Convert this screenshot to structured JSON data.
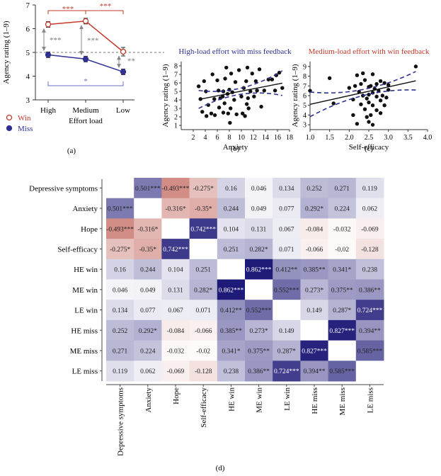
{
  "chart_data": [
    {
      "id": "a",
      "type": "line",
      "panel_label": "(a)",
      "ylabel": "Agency rating (1–9)",
      "xlabel": "Effort load",
      "categories": [
        "High",
        "Medium",
        "Low"
      ],
      "ylim": [
        3,
        7
      ],
      "yticks": [
        3,
        4,
        5,
        6,
        7
      ],
      "reference_line": 5,
      "series": [
        {
          "name": "Win",
          "values": [
            6.18,
            6.32,
            5.03
          ],
          "errors": [
            0.12,
            0.12,
            0.18
          ],
          "color": "#c0392b",
          "marker": "open-circle"
        },
        {
          "name": "Miss",
          "values": [
            4.9,
            4.72,
            4.18
          ],
          "errors": [
            0.12,
            0.12,
            0.12
          ],
          "color": "#2e3192",
          "marker": "filled-circle"
        }
      ],
      "annotations": {
        "win_high_medium": "***",
        "win_medium_low": "***",
        "high_win_miss": "***",
        "medium_win_miss": "***",
        "low_win_miss": "**",
        "miss_high_low": "*"
      }
    },
    {
      "id": "b",
      "type": "scatter",
      "panel_label": "(b)",
      "title": "High-load effort with miss feedback",
      "title_color": "#2e3192",
      "xlabel": "Anxiety",
      "ylabel": "Agency rating (1–9)",
      "xlim": [
        0,
        18
      ],
      "ylim": [
        0.5,
        8.5
      ],
      "xticks": [
        2,
        4,
        6,
        8,
        10,
        12,
        14,
        16,
        18
      ],
      "yticks": [
        1,
        2,
        3,
        4,
        5,
        6,
        7,
        8
      ],
      "fit": {
        "intercept": 3.65,
        "slope": 0.138
      },
      "ci_color": "#2e3192",
      "points": [
        [
          2.9,
          5.6
        ],
        [
          3.2,
          4.1
        ],
        [
          3.5,
          2.6
        ],
        [
          3.8,
          6.2
        ],
        [
          4.1,
          5.0
        ],
        [
          4.2,
          2.1
        ],
        [
          4.5,
          3.4
        ],
        [
          5.0,
          2.4
        ],
        [
          5.2,
          7.0
        ],
        [
          5.5,
          4.1
        ],
        [
          5.6,
          2.2
        ],
        [
          6.0,
          6.3
        ],
        [
          6.2,
          5.1
        ],
        [
          6.3,
          3.1
        ],
        [
          6.5,
          4.2
        ],
        [
          6.9,
          4.4
        ],
        [
          7.0,
          2.5
        ],
        [
          7.0,
          5.0
        ],
        [
          7.2,
          3.6
        ],
        [
          7.3,
          6.5
        ],
        [
          7.5,
          7.8
        ],
        [
          7.7,
          4.7
        ],
        [
          7.8,
          2.4
        ],
        [
          8.0,
          5.2
        ],
        [
          8.1,
          1.3
        ],
        [
          8.2,
          3.0
        ],
        [
          8.3,
          7.1
        ],
        [
          8.5,
          4.9
        ],
        [
          8.8,
          4.0
        ],
        [
          9.0,
          6.1
        ],
        [
          9.2,
          2.3
        ],
        [
          9.6,
          7.5
        ],
        [
          10.0,
          4.4
        ],
        [
          10.2,
          2.4
        ],
        [
          10.4,
          5.4
        ],
        [
          10.6,
          2.1
        ],
        [
          10.8,
          6.2
        ],
        [
          10.9,
          3.5
        ],
        [
          11.0,
          7.8
        ],
        [
          11.1,
          4.2
        ],
        [
          11.2,
          3.0
        ],
        [
          11.5,
          5.0
        ],
        [
          11.8,
          7.1
        ],
        [
          12.1,
          4.4
        ],
        [
          12.4,
          6.2
        ],
        [
          12.6,
          5.1
        ],
        [
          13.0,
          7.6
        ],
        [
          13.3,
          3.2
        ],
        [
          13.8,
          5.1
        ],
        [
          14.5,
          6.4
        ],
        [
          15.1,
          6.4
        ],
        [
          15.6,
          5.1
        ],
        [
          15.8,
          6.9
        ],
        [
          16.3,
          7.2
        ],
        [
          16.8,
          5.4
        ]
      ]
    },
    {
      "id": "c",
      "type": "scatter",
      "panel_label": "(c)",
      "title": "Medium-load effort with win feedback",
      "title_color": "#c0392b",
      "xlabel": "Self-efficacy",
      "ylabel": "Agency rating (1–9)",
      "xlim": [
        1.0,
        4.0
      ],
      "ylim": [
        2.5,
        9.5
      ],
      "xticks": [
        1.0,
        1.5,
        2.0,
        2.5,
        3.0,
        3.5,
        4.0
      ],
      "yticks": [
        3,
        4,
        5,
        6,
        7,
        8,
        9
      ],
      "fit": {
        "intercept": 4.2,
        "slope": 0.9
      },
      "ci_color": "#2e3192",
      "points": [
        [
          1.0,
          6.5
        ],
        [
          1.5,
          7.8
        ],
        [
          1.6,
          5.2
        ],
        [
          2.0,
          6.8
        ],
        [
          2.1,
          4.0
        ],
        [
          2.1,
          5.6
        ],
        [
          2.2,
          8.1
        ],
        [
          2.2,
          3.1
        ],
        [
          2.25,
          6.4
        ],
        [
          2.3,
          5.1
        ],
        [
          2.3,
          7.2
        ],
        [
          2.35,
          6.0
        ],
        [
          2.4,
          7.6
        ],
        [
          2.4,
          4.6
        ],
        [
          2.45,
          5.7
        ],
        [
          2.5,
          6.9
        ],
        [
          2.5,
          6.1
        ],
        [
          2.5,
          5.3
        ],
        [
          2.5,
          3.3
        ],
        [
          2.55,
          7.0
        ],
        [
          2.6,
          6.3
        ],
        [
          2.6,
          5.0
        ],
        [
          2.6,
          8.2
        ],
        [
          2.6,
          3.0
        ],
        [
          2.65,
          6.7
        ],
        [
          2.7,
          5.9
        ],
        [
          2.7,
          7.2
        ],
        [
          2.7,
          4.5
        ],
        [
          2.75,
          6.5
        ],
        [
          2.8,
          5.5
        ],
        [
          2.8,
          7.5
        ],
        [
          2.8,
          4.2
        ],
        [
          2.85,
          6.0
        ],
        [
          2.9,
          7.3
        ],
        [
          2.9,
          5.0
        ],
        [
          3.0,
          7.1
        ],
        [
          3.0,
          6.6
        ],
        [
          2.35,
          8.3
        ],
        [
          2.45,
          3.8
        ],
        [
          2.15,
          7.0
        ],
        [
          2.95,
          5.8
        ],
        [
          2.55,
          4.0
        ],
        [
          3.7,
          9.0
        ]
      ]
    },
    {
      "id": "d",
      "type": "heatmap",
      "panel_label": "(d)",
      "labels": [
        "Depressive symptoms",
        "Anxiety",
        "Hope",
        "Self-efficacy",
        "HE win",
        "ME win",
        "LE win",
        "HE miss",
        "ME miss",
        "LE miss"
      ],
      "matrix": [
        [
          null,
          "0.501***",
          "-0.493***",
          "-0.275*",
          "0.16",
          "0.046",
          "0.134",
          "0.252",
          "0.271",
          "0.119"
        ],
        [
          "0.501***",
          null,
          "-0.316*",
          "-0.35*",
          "0.244",
          "0.049",
          "0.077",
          "0.292*",
          "0.224",
          "0.062"
        ],
        [
          "-0.493***",
          "-0.316*",
          null,
          "0.742***",
          "0.104",
          "0.131",
          "0.067",
          "-0.084",
          "-0.032",
          "-0.069"
        ],
        [
          "-0.275*",
          "-0.35*",
          "0.742***",
          null,
          "0.251",
          "0.282*",
          "0.071",
          "-0.066",
          "-0.02",
          "-0.128"
        ],
        [
          "0.16",
          "0.244",
          "0.104",
          "0.251",
          null,
          "0.862***",
          "0.412**",
          "0.385**",
          "0.341*",
          "0.238"
        ],
        [
          "0.046",
          "0.049",
          "0.131",
          "0.282*",
          "0.862***",
          null,
          "0.552***",
          "0.273*",
          "0.375**",
          "0.386**"
        ],
        [
          "0.134",
          "0.077",
          "0.067",
          "0.071",
          "0.412**",
          "0.552***",
          null,
          "0.149",
          "0.287*",
          "0.724***"
        ],
        [
          "0.252",
          "0.292*",
          "-0.084",
          "-0.066",
          "0.385**",
          "0.273*",
          "0.149",
          null,
          "0.827***",
          "0.394**"
        ],
        [
          "0.271",
          "0.224",
          "-0.032",
          "-0.02",
          "0.341*",
          "0.375**",
          "0.287*",
          "0.827***",
          null,
          "0.585***"
        ],
        [
          "0.119",
          "0.062",
          "-0.069",
          "-0.128",
          "0.238",
          "0.386**",
          "0.724***",
          "0.394**",
          "0.585***",
          null
        ]
      ],
      "positive_color": "#1e1a78",
      "negative_color": "#b0392c"
    }
  ]
}
